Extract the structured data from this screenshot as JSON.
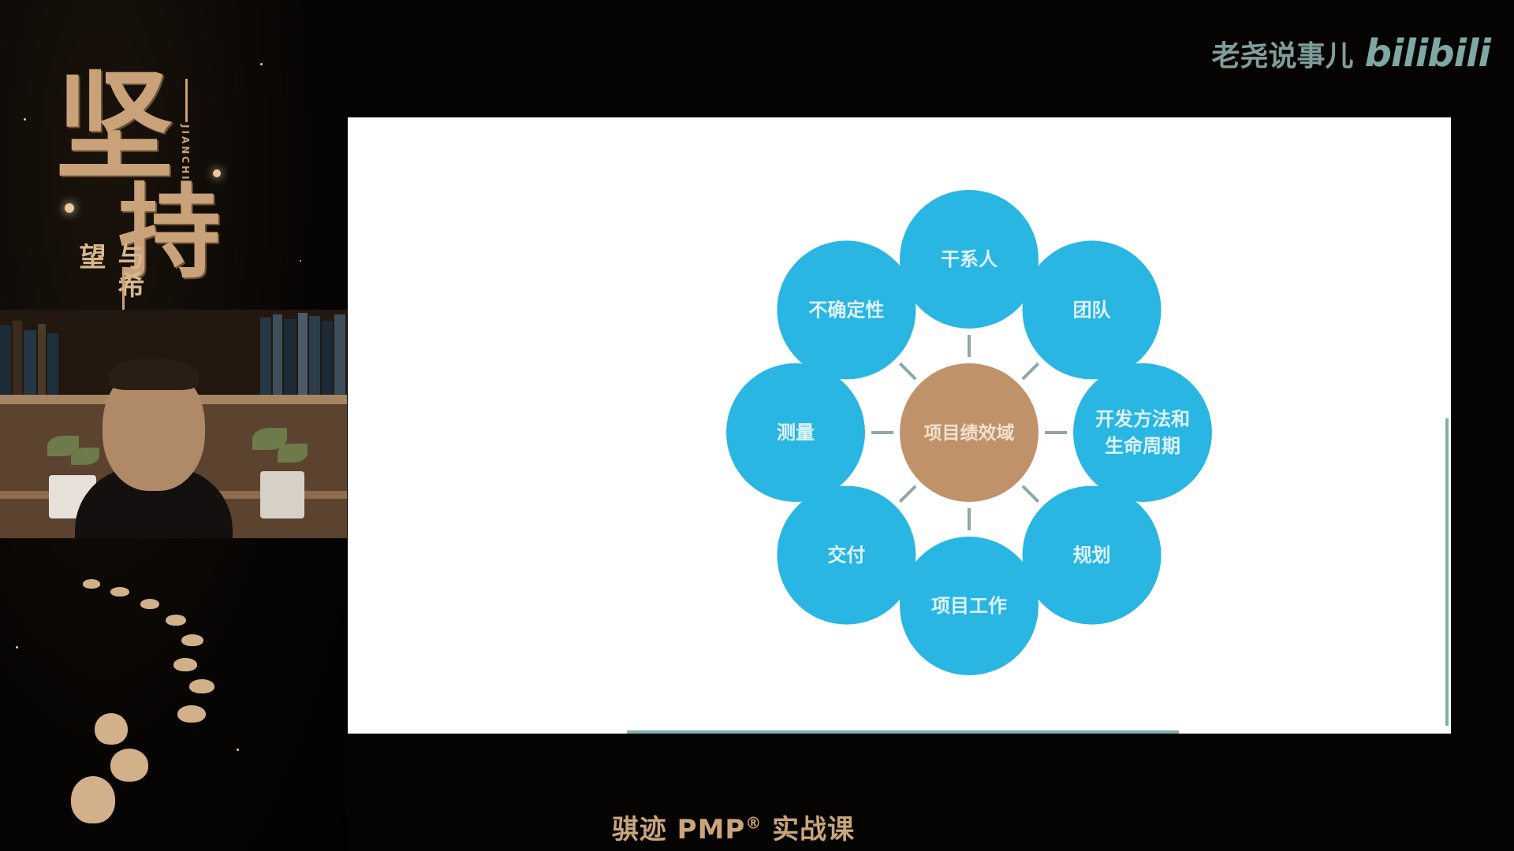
{
  "brand": {
    "channel_name": "老尧说事儿",
    "platform_logo": "bilibili"
  },
  "left_panel": {
    "calligraphy_char_1": "坚",
    "calligraphy_char_2": "持",
    "calligraphy_subtitle": "与希望",
    "calligraphy_pinyin": "JIANCHI"
  },
  "slide": {
    "center": {
      "label": "项目绩效域",
      "color": "#c0926a"
    },
    "node_color": "#29b6e3",
    "nodes": [
      {
        "label": "干系人"
      },
      {
        "label": "团队"
      },
      {
        "label": "开发方法和",
        "label2": "生命周期"
      },
      {
        "label": "规划"
      },
      {
        "label": "项目工作"
      },
      {
        "label": "交付"
      },
      {
        "label": "测量"
      },
      {
        "label": "不确定性"
      }
    ]
  },
  "caption": {
    "text": "骐迹 PMP",
    "reg_mark": "®",
    "suffix": " 实战课"
  }
}
